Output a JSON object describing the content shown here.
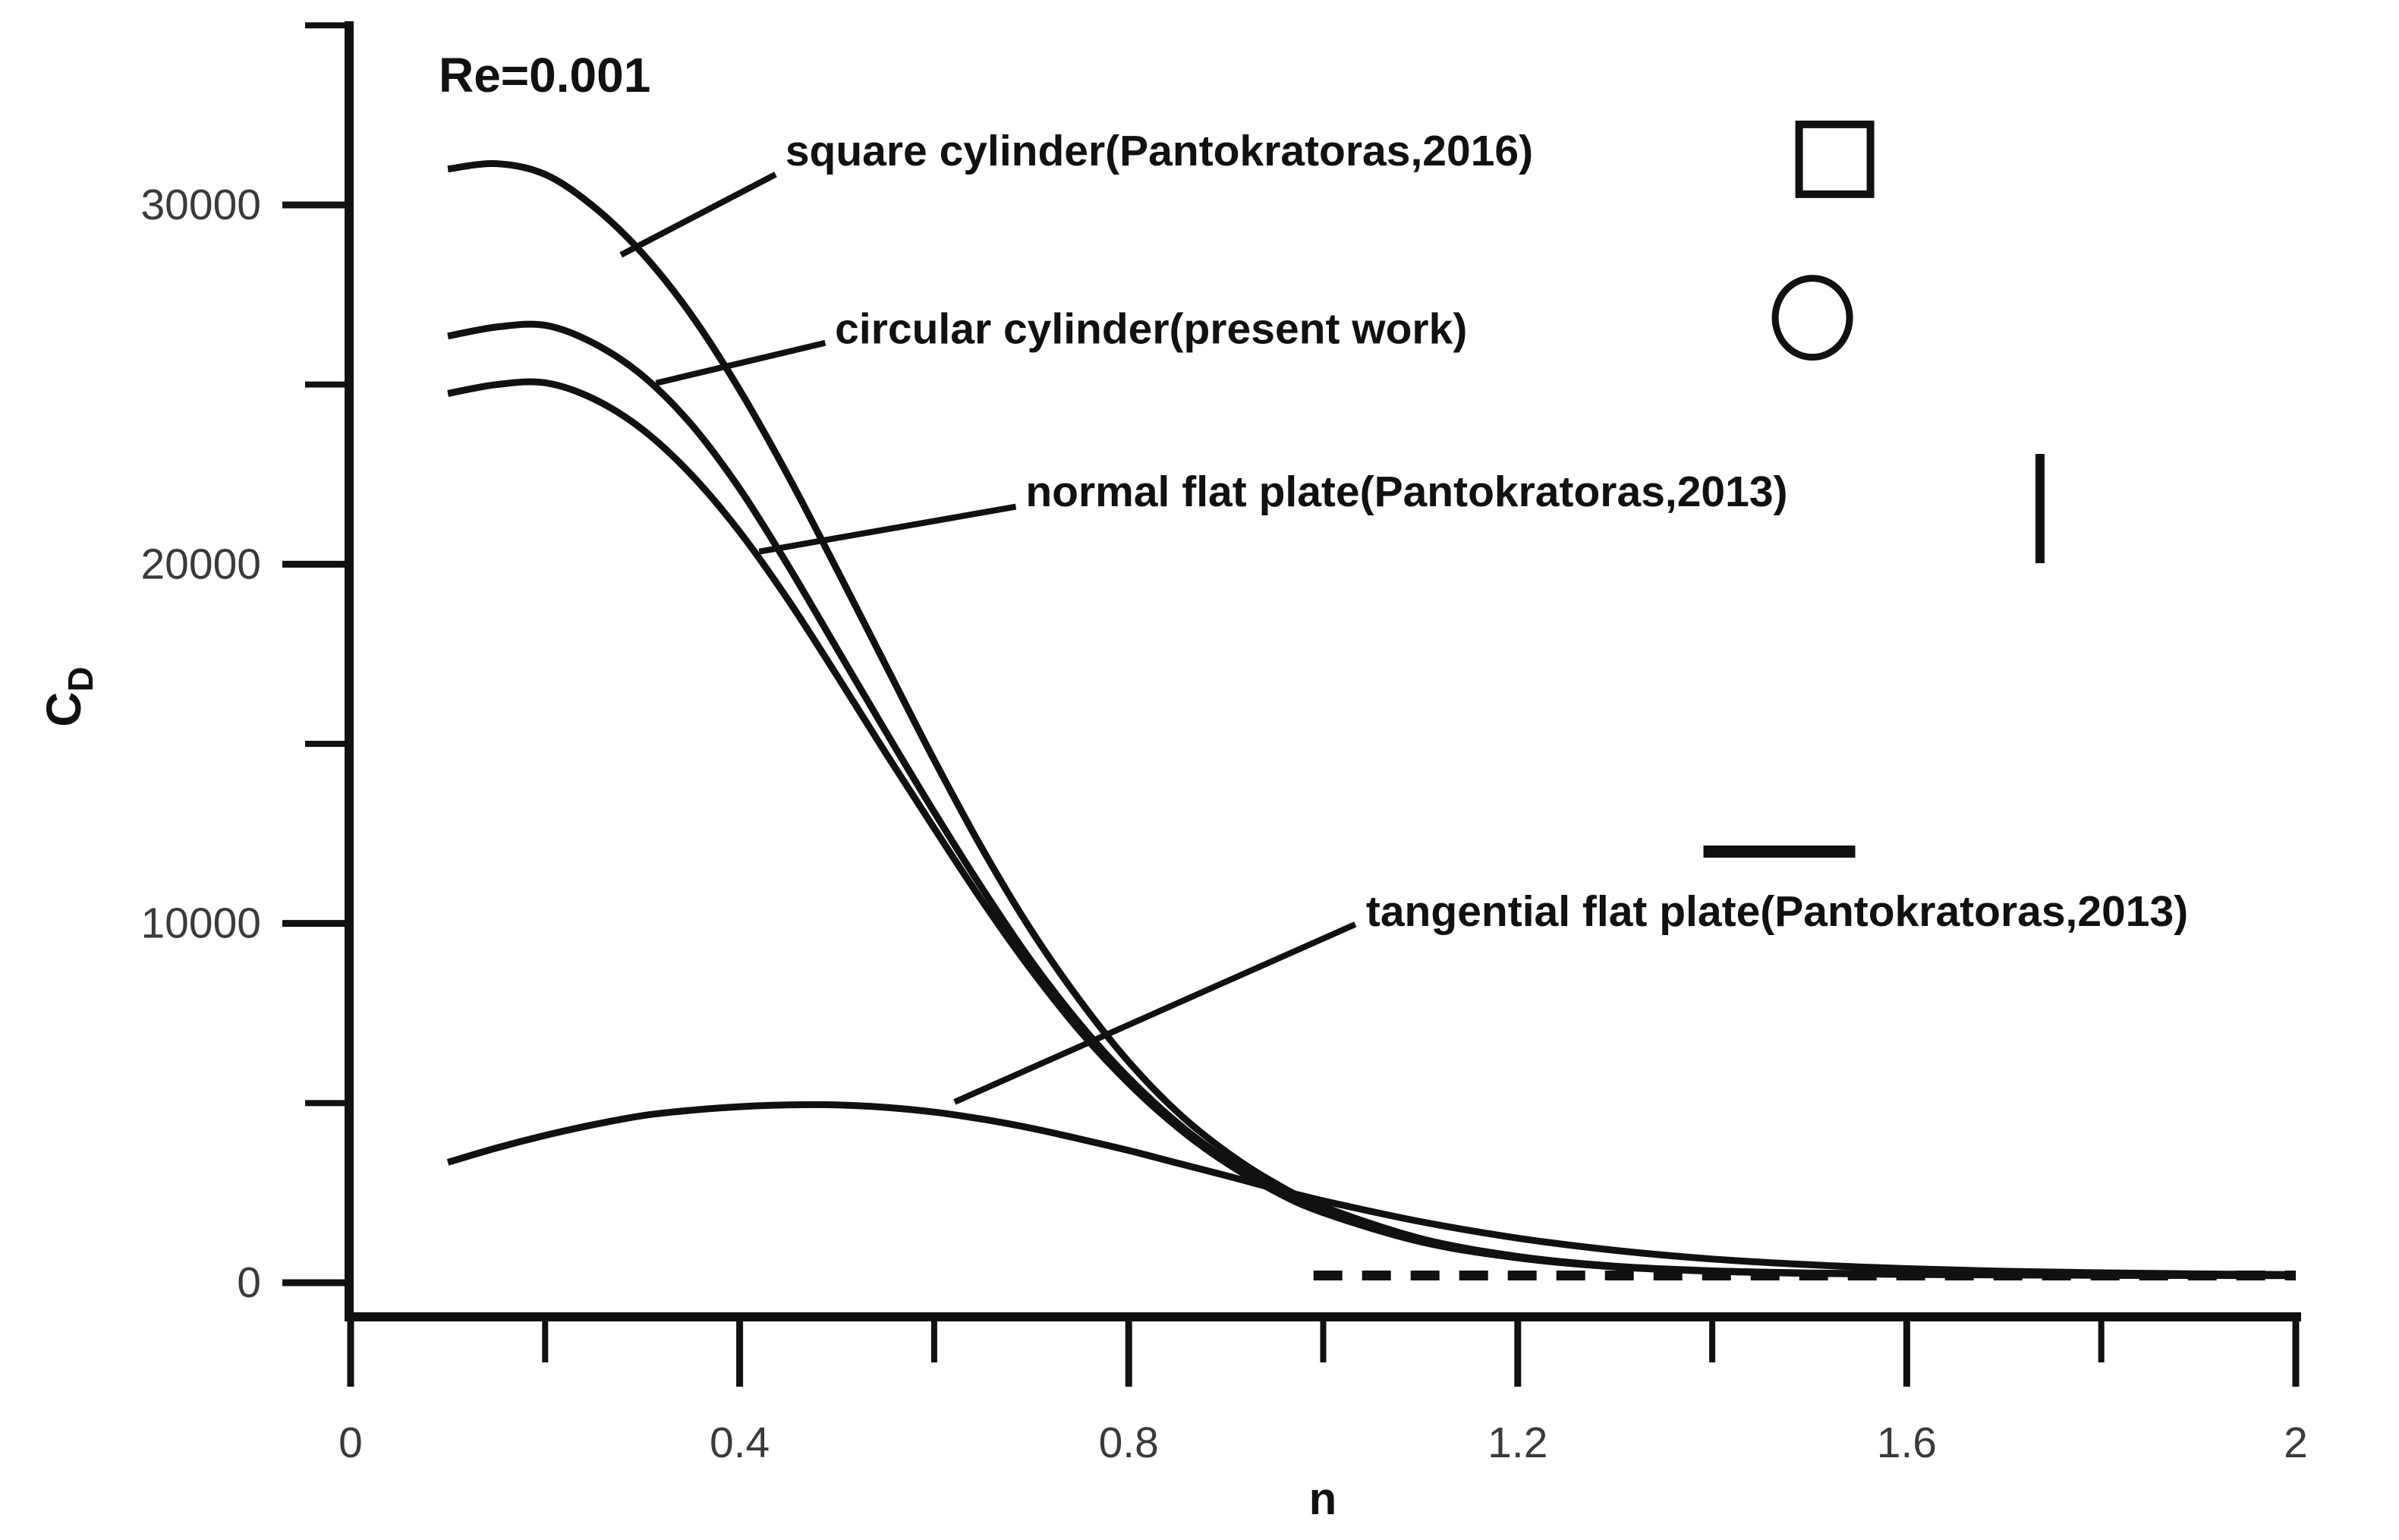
{
  "figure": {
    "background": "#ffffff",
    "ink_color": "#111111",
    "tick_label_color": "#3a3a3a"
  },
  "chart_data": {
    "type": "line",
    "title": "Re=0.001",
    "title_anchor": {
      "n": 0.0905,
      "cd": 33500
    },
    "xlabel": "n",
    "ylabel": {
      "main": "C",
      "sub": "D"
    },
    "xlim": [
      0,
      2
    ],
    "ylim": [
      0,
      35000
    ],
    "grid": false,
    "x_axis": {
      "ticks_major": {
        "values": [
          0,
          0.4,
          0.8,
          1.2,
          1.6,
          2
        ],
        "labels": [
          "0",
          "0.4",
          "0.8",
          "1.2",
          "1.6",
          "2"
        ]
      },
      "ticks_minor": [
        0.2,
        0.6,
        1.0,
        1.4,
        1.8
      ]
    },
    "y_axis": {
      "ticks_major": {
        "values": [
          0,
          10000,
          20000,
          30000
        ],
        "labels": [
          "0",
          "10000",
          "20000",
          "30000"
        ]
      },
      "ticks_minor": [
        5000,
        15000,
        25000,
        35000
      ]
    },
    "series": [
      {
        "name": "square-cylinder",
        "label": "square cylinder(Pantokratoras,2016)",
        "marker": "square",
        "line": "solid",
        "label_anchor": {
          "n": 0.447,
          "cd": 31420
        },
        "leader": [
          [
            0.437,
            30850
          ],
          [
            0.278,
            28610
          ]
        ],
        "marker_pos": {
          "n": 1.526,
          "cd": 31270
        },
        "points": [
          [
            0.1,
            31000
          ],
          [
            0.15,
            31150
          ],
          [
            0.2,
            30850
          ],
          [
            0.25,
            29950
          ],
          [
            0.3,
            28650
          ],
          [
            0.35,
            26950
          ],
          [
            0.4,
            24850
          ],
          [
            0.45,
            22450
          ],
          [
            0.5,
            19850
          ],
          [
            0.55,
            17200
          ],
          [
            0.6,
            14550
          ],
          [
            0.65,
            12050
          ],
          [
            0.7,
            9800
          ],
          [
            0.75,
            7850
          ],
          [
            0.8,
            6150
          ],
          [
            0.85,
            4750
          ],
          [
            0.9,
            3650
          ],
          [
            0.95,
            2780
          ],
          [
            1.0,
            2120
          ],
          [
            1.1,
            1230
          ],
          [
            1.2,
            730
          ],
          [
            1.3,
            460
          ],
          [
            1.4,
            330
          ],
          [
            1.5,
            270
          ],
          [
            1.6,
            240
          ],
          [
            1.7,
            225
          ],
          [
            1.8,
            215
          ],
          [
            1.9,
            210
          ],
          [
            2.0,
            205
          ]
        ]
      },
      {
        "name": "circular-cylinder",
        "label": "circular cylinder(present work)",
        "marker": "circle",
        "line": "solid",
        "label_anchor": {
          "n": 0.498,
          "cd": 26460
        },
        "leader": [
          [
            0.488,
            26160
          ],
          [
            0.314,
            25040
          ]
        ],
        "marker_pos": {
          "n": 1.503,
          "cd": 26860
        },
        "points": [
          [
            0.1,
            26350
          ],
          [
            0.15,
            26600
          ],
          [
            0.2,
            26650
          ],
          [
            0.25,
            26150
          ],
          [
            0.3,
            25250
          ],
          [
            0.35,
            23900
          ],
          [
            0.4,
            22100
          ],
          [
            0.45,
            19950
          ],
          [
            0.5,
            17650
          ],
          [
            0.55,
            15350
          ],
          [
            0.6,
            13100
          ],
          [
            0.65,
            10950
          ],
          [
            0.7,
            8950
          ],
          [
            0.75,
            7200
          ],
          [
            0.8,
            5700
          ],
          [
            0.85,
            4450
          ],
          [
            0.9,
            3430
          ],
          [
            0.95,
            2620
          ],
          [
            1.0,
            2000
          ],
          [
            1.1,
            1170
          ],
          [
            1.2,
            700
          ],
          [
            1.3,
            450
          ],
          [
            1.4,
            325
          ],
          [
            1.5,
            265
          ],
          [
            1.6,
            235
          ],
          [
            1.7,
            220
          ],
          [
            1.8,
            210
          ],
          [
            1.9,
            205
          ],
          [
            2.0,
            200
          ]
        ]
      },
      {
        "name": "normal-flat-plate",
        "label": "normal flat plate(Pantokratoras,2013)",
        "marker": "vbar",
        "line": "solid",
        "label_anchor": {
          "n": 0.694,
          "cd": 21930
        },
        "leader": [
          [
            0.684,
            21600
          ],
          [
            0.42,
            20350
          ]
        ],
        "marker_pos": {
          "n": 1.737,
          "cd": 21550
        },
        "points": [
          [
            0.1,
            24750
          ],
          [
            0.15,
            25000
          ],
          [
            0.2,
            25050
          ],
          [
            0.25,
            24600
          ],
          [
            0.3,
            23750
          ],
          [
            0.35,
            22500
          ],
          [
            0.4,
            20900
          ],
          [
            0.45,
            19000
          ],
          [
            0.5,
            16900
          ],
          [
            0.55,
            14750
          ],
          [
            0.6,
            12650
          ],
          [
            0.65,
            10600
          ],
          [
            0.7,
            8700
          ],
          [
            0.75,
            7000
          ],
          [
            0.8,
            5550
          ],
          [
            0.85,
            4330
          ],
          [
            0.9,
            3340
          ],
          [
            0.95,
            2550
          ],
          [
            1.0,
            1950
          ],
          [
            1.1,
            1140
          ],
          [
            1.2,
            690
          ],
          [
            1.3,
            440
          ],
          [
            1.4,
            320
          ],
          [
            1.5,
            260
          ],
          [
            1.6,
            230
          ],
          [
            1.7,
            215
          ],
          [
            1.8,
            205
          ],
          [
            1.9,
            200
          ],
          [
            2.0,
            195
          ]
        ]
      },
      {
        "name": "tangential-flat-plate",
        "label": "tangential flat plate(Pantokratoras,2013)",
        "marker": "hbar",
        "line": "solid",
        "label_anchor": {
          "n": 1.044,
          "cd": 10250
        },
        "leader": [
          [
            1.033,
            9975
          ],
          [
            0.621,
            5030
          ]
        ],
        "marker_pos": {
          "n": 1.469,
          "cd": 12000
        },
        "points": [
          [
            0.1,
            3350
          ],
          [
            0.15,
            3750
          ],
          [
            0.2,
            4100
          ],
          [
            0.25,
            4400
          ],
          [
            0.3,
            4650
          ],
          [
            0.35,
            4800
          ],
          [
            0.4,
            4900
          ],
          [
            0.45,
            4950
          ],
          [
            0.5,
            4950
          ],
          [
            0.55,
            4880
          ],
          [
            0.6,
            4750
          ],
          [
            0.65,
            4550
          ],
          [
            0.7,
            4300
          ],
          [
            0.75,
            4000
          ],
          [
            0.8,
            3680
          ],
          [
            0.85,
            3330
          ],
          [
            0.9,
            2980
          ],
          [
            0.95,
            2620
          ],
          [
            1.0,
            2280
          ],
          [
            1.1,
            1700
          ],
          [
            1.2,
            1240
          ],
          [
            1.3,
            900
          ],
          [
            1.4,
            660
          ],
          [
            1.5,
            500
          ],
          [
            1.6,
            390
          ],
          [
            1.7,
            320
          ],
          [
            1.8,
            275
          ],
          [
            1.9,
            245
          ],
          [
            2.0,
            225
          ]
        ]
      },
      {
        "name": "near-zero-asymptote",
        "label": "",
        "marker": null,
        "line": "dashed",
        "points": [
          [
            0.99,
            200
          ],
          [
            2.0,
            200
          ]
        ]
      }
    ],
    "legend_position": "inside-right-labels-with-leader-lines"
  }
}
